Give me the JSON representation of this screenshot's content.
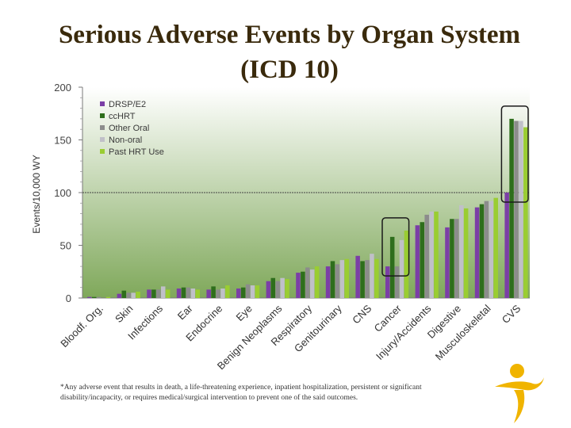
{
  "title": "Serious Adverse Events by Organ System (ICD 10)",
  "footnote": "*Any adverse event that results in death, a life-threatening experience, inpatient hospitalization, persistent or significant disability/incapacity, or requires medical/surgical intervention to prevent one of the said outcomes.",
  "colors": {
    "plot_top": "#ffffff",
    "plot_bottom": "#7fa85a",
    "highlight_box": "#1a1a1a",
    "logo_gold": "#f0b400"
  },
  "chart_data": {
    "type": "bar",
    "ylabel": "Events/10,000 WY",
    "ylim": [
      0,
      200
    ],
    "yticks": [
      0,
      50,
      100,
      150,
      200
    ],
    "reference_line": 100,
    "legend_position": "top-left",
    "categories": [
      "Bloodf. Org.",
      "Skin",
      "Infections",
      "Ear",
      "Endocrine",
      "Eye",
      "Benign Neoplasms",
      "Respiratory",
      "Genitourinary",
      "CNS",
      "Cancer",
      "Injury/Accidents",
      "Digestive",
      "Musculoskeletal",
      "CVS"
    ],
    "series": [
      {
        "name": "DRSP/E2",
        "color": "#7b3fa6",
        "values": [
          1,
          4,
          8,
          9,
          8,
          9,
          16,
          24,
          30,
          40,
          30,
          69,
          67,
          86,
          100
        ]
      },
      {
        "name": "ccHRT",
        "color": "#2e6e1c",
        "values": [
          1,
          7,
          8,
          10,
          11,
          10,
          19,
          25,
          35,
          35,
          58,
          72,
          75,
          89,
          170
        ]
      },
      {
        "name": "Other Oral",
        "color": "#8c8c8c",
        "values": [
          1,
          5,
          8,
          10,
          8,
          13,
          16,
          29,
          32,
          36,
          30,
          79,
          75,
          92,
          168
        ]
      },
      {
        "name": "Non-oral",
        "color": "#c0c0c8",
        "values": [
          0,
          5,
          11,
          9,
          9,
          12,
          19,
          27,
          36,
          42,
          55,
          82,
          88,
          92,
          168
        ]
      },
      {
        "name": "Past HRT Use",
        "color": "#9acd32",
        "values": [
          1,
          6,
          8,
          8,
          12,
          12,
          18,
          30,
          37,
          37,
          64,
          82,
          85,
          95,
          162
        ]
      }
    ],
    "highlighted_categories": [
      "Cancer",
      "CVS"
    ]
  }
}
